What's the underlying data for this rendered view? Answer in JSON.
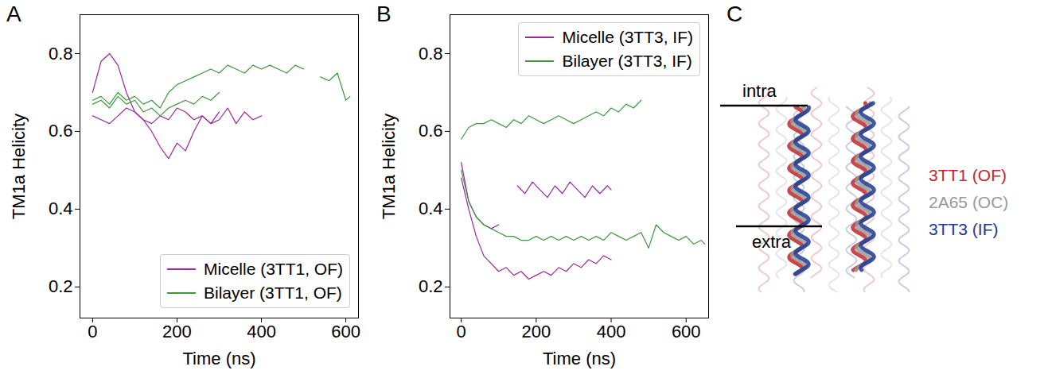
{
  "chart_data": [
    {
      "type": "line",
      "title": "A",
      "xlabel": "Time (ns)",
      "ylabel": "TM1a Helicity",
      "xlim": [
        -30,
        630
      ],
      "xticks": [
        0,
        200,
        400,
        600
      ],
      "ylim": [
        0.12,
        0.9
      ],
      "yticks": [
        0.2,
        0.4,
        0.6,
        0.8
      ],
      "grid": false,
      "legend": "lower right",
      "series": [
        {
          "name": "Micelle (3TT1, OF)",
          "color": "#9a2a9a",
          "x": [
            0,
            20,
            40,
            60,
            80,
            100,
            120,
            140,
            160,
            180,
            200,
            220,
            240,
            260,
            280,
            300,
            320,
            340,
            360,
            380,
            400
          ],
          "values": [
            0.7,
            0.78,
            0.8,
            0.77,
            0.7,
            0.65,
            0.63,
            0.6,
            0.56,
            0.53,
            0.57,
            0.55,
            0.6,
            0.64,
            0.62,
            0.63,
            0.66,
            0.62,
            0.65,
            0.63,
            0.64
          ]
        },
        {
          "name": "Micelle (3TT1, OF)",
          "color": "#9a2a9a",
          "x": [
            0,
            20,
            40,
            60,
            80,
            100,
            120,
            140,
            160,
            180,
            200,
            220,
            240,
            260,
            280,
            300
          ],
          "values": [
            0.64,
            0.63,
            0.62,
            0.64,
            0.66,
            0.65,
            0.63,
            0.62,
            0.64,
            0.63,
            0.66,
            0.65,
            0.63,
            0.64,
            0.62,
            0.65
          ]
        },
        {
          "name": "Bilayer (3TT1, OF)",
          "color": "#3c9a3c",
          "x": [
            0,
            20,
            40,
            60,
            80,
            100,
            120,
            140,
            160,
            180,
            200,
            220,
            240,
            260,
            280,
            300,
            320,
            340,
            360,
            380,
            400,
            420,
            440,
            460,
            480,
            500,
            520,
            540,
            560,
            580,
            600,
            610
          ],
          "values": [
            0.68,
            0.69,
            0.67,
            0.7,
            0.68,
            0.69,
            0.67,
            0.68,
            0.66,
            0.7,
            0.72,
            0.73,
            0.74,
            0.75,
            0.76,
            0.75,
            0.77,
            0.76,
            0.75,
            0.77,
            0.76,
            0.77,
            0.76,
            0.75,
            0.77,
            0.76,
            null,
            0.74,
            0.73,
            0.75,
            0.68,
            0.69
          ]
        },
        {
          "name": "Bilayer (3TT1, OF)",
          "color": "#3c9a3c",
          "x": [
            0,
            20,
            40,
            60,
            80,
            100,
            120,
            140,
            160,
            180,
            200,
            220,
            240,
            260,
            280,
            300
          ],
          "values": [
            0.67,
            0.68,
            0.66,
            0.69,
            0.67,
            0.68,
            0.65,
            0.66,
            0.64,
            0.66,
            0.67,
            0.68,
            0.67,
            0.69,
            0.68,
            0.7
          ]
        }
      ]
    },
    {
      "type": "line",
      "title": "B",
      "xlabel": "Time (ns)",
      "ylabel": "TM1a Helicity",
      "xlim": [
        -30,
        660
      ],
      "xticks": [
        0,
        200,
        400,
        600
      ],
      "ylim": [
        0.12,
        0.9
      ],
      "yticks": [
        0.2,
        0.4,
        0.6,
        0.8
      ],
      "grid": false,
      "legend": "upper right",
      "series": [
        {
          "name": "Micelle (3TT3, IF)",
          "color": "#9a2a9a",
          "x": [
            0,
            20,
            40,
            60,
            80,
            100,
            120,
            140,
            160,
            180,
            200,
            220,
            240,
            260,
            280,
            300,
            320,
            340,
            360,
            380,
            400
          ],
          "values": [
            0.48,
            0.4,
            0.33,
            0.28,
            0.26,
            0.24,
            0.25,
            0.23,
            0.24,
            0.22,
            0.23,
            0.24,
            0.23,
            0.25,
            0.24,
            0.26,
            0.25,
            0.27,
            0.26,
            0.28,
            0.27
          ]
        },
        {
          "name": "Micelle (3TT3, IF)",
          "color": "#9a2a9a",
          "x": [
            0,
            20,
            40,
            60,
            80,
            100
          ],
          "values": [
            0.52,
            0.42,
            0.38,
            0.36,
            0.35,
            0.36
          ]
        },
        {
          "name": "Micelle (3TT3, IF)",
          "color": "#9a2a9a",
          "x": [
            150,
            170,
            190,
            210,
            230,
            250,
            270,
            290,
            310,
            330,
            350,
            370,
            390,
            400
          ],
          "values": [
            0.46,
            0.44,
            0.47,
            0.45,
            0.43,
            0.46,
            0.44,
            0.47,
            0.45,
            0.43,
            0.46,
            0.44,
            0.46,
            0.45
          ]
        },
        {
          "name": "Bilayer (3TT3, IF)",
          "color": "#3c9a3c",
          "x": [
            0,
            20,
            40,
            60,
            80,
            100,
            120,
            140,
            160,
            180,
            200,
            220,
            240,
            260,
            280,
            300,
            320,
            340,
            360,
            380,
            400,
            420,
            440,
            460,
            480
          ],
          "values": [
            0.58,
            0.61,
            0.62,
            0.62,
            0.63,
            0.62,
            0.61,
            0.63,
            0.62,
            0.64,
            0.63,
            0.62,
            0.63,
            0.64,
            0.63,
            0.62,
            0.63,
            0.64,
            0.65,
            0.64,
            0.66,
            0.65,
            0.67,
            0.66,
            0.68
          ]
        },
        {
          "name": "Bilayer (3TT3, IF)",
          "color": "#3c9a3c",
          "x": [
            0,
            20,
            40,
            60,
            80,
            100,
            120,
            140,
            160,
            180,
            200,
            220,
            240,
            260,
            280,
            300,
            320,
            340,
            360,
            380,
            400,
            420,
            440,
            460,
            480,
            500,
            520,
            540,
            560,
            580,
            600,
            620,
            640,
            650
          ],
          "values": [
            0.5,
            0.42,
            0.38,
            0.36,
            0.35,
            0.34,
            0.33,
            0.33,
            0.32,
            0.32,
            0.33,
            0.32,
            0.33,
            0.32,
            0.33,
            0.32,
            0.33,
            0.32,
            0.33,
            0.32,
            0.34,
            0.33,
            0.32,
            0.33,
            0.34,
            0.3,
            0.36,
            0.34,
            0.33,
            0.32,
            0.33,
            0.31,
            0.32,
            0.31
          ]
        }
      ]
    }
  ],
  "panel_c": {
    "title": "C",
    "annotations": [
      "intra",
      "extra"
    ],
    "legend": [
      {
        "name": "3TT1 (OF)",
        "color": "#c0282d"
      },
      {
        "name": "2A65 (OC)",
        "color": "#999999"
      },
      {
        "name": "3TT3 (IF)",
        "color": "#1f3a93"
      }
    ]
  }
}
